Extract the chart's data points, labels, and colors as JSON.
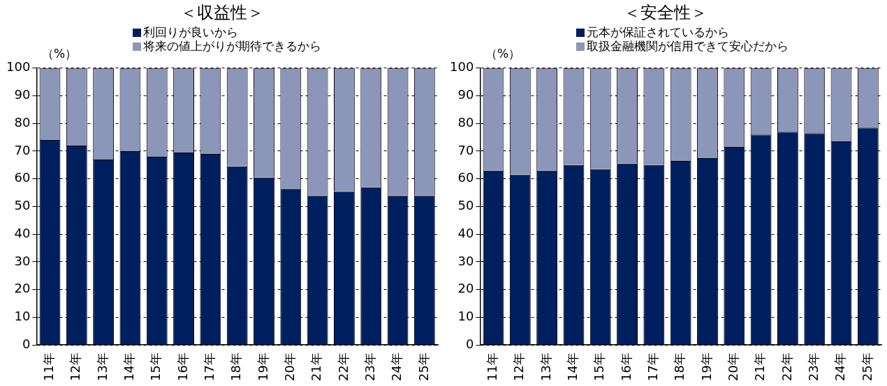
{
  "chart_data": [
    {
      "type": "bar",
      "title": "＜収益性＞",
      "ylabel": "（%）",
      "stacked": true,
      "grid": "y",
      "legend": "top",
      "categories": [
        "11年",
        "12年",
        "13年",
        "14年",
        "15年",
        "16年",
        "17年",
        "18年",
        "19年",
        "20年",
        "21年",
        "22年",
        "23年",
        "24年",
        "25年"
      ],
      "ylim": [
        0,
        100
      ],
      "yticks": [
        0,
        10,
        20,
        30,
        40,
        50,
        60,
        70,
        80,
        90,
        100
      ],
      "series": [
        {
          "name": "利回りが良いから",
          "color": "#001f5f",
          "values": [
            74,
            72,
            67,
            70,
            68,
            69.5,
            69,
            64.5,
            60.5,
            56.5,
            54,
            55.5,
            57,
            54,
            54
          ]
        },
        {
          "name": "将来の値上がりが期待できるから",
          "color": "#8c96b8",
          "values": [
            26,
            28,
            33,
            30,
            32,
            30.5,
            31,
            35.5,
            39.5,
            43.5,
            46,
            44.5,
            43,
            46,
            46
          ]
        }
      ]
    },
    {
      "type": "bar",
      "title": "＜安全性＞",
      "ylabel": "（%）",
      "stacked": true,
      "grid": "y",
      "legend": "top",
      "categories": [
        "11年",
        "12年",
        "13年",
        "14年",
        "15年",
        "16年",
        "17年",
        "18年",
        "19年",
        "20年",
        "21年",
        "22年",
        "23年",
        "24年",
        "25年"
      ],
      "ylim": [
        0,
        100
      ],
      "yticks": [
        0,
        10,
        20,
        30,
        40,
        50,
        60,
        70,
        80,
        90,
        100
      ],
      "series": [
        {
          "name": "元本が保証されているから",
          "color": "#001f5f",
          "values": [
            63,
            61.5,
            63,
            65,
            63.5,
            65.5,
            65,
            66.5,
            67.5,
            71.5,
            76,
            77,
            76.5,
            73.5,
            78.5
          ]
        },
        {
          "name": "取扱金融機関が信用できて安心だから",
          "color": "#8c96b8",
          "values": [
            37,
            38.5,
            37,
            35,
            36.5,
            34.5,
            35,
            33.5,
            32.5,
            28.5,
            24,
            23,
            23.5,
            26.5,
            21.5
          ]
        }
      ]
    }
  ]
}
